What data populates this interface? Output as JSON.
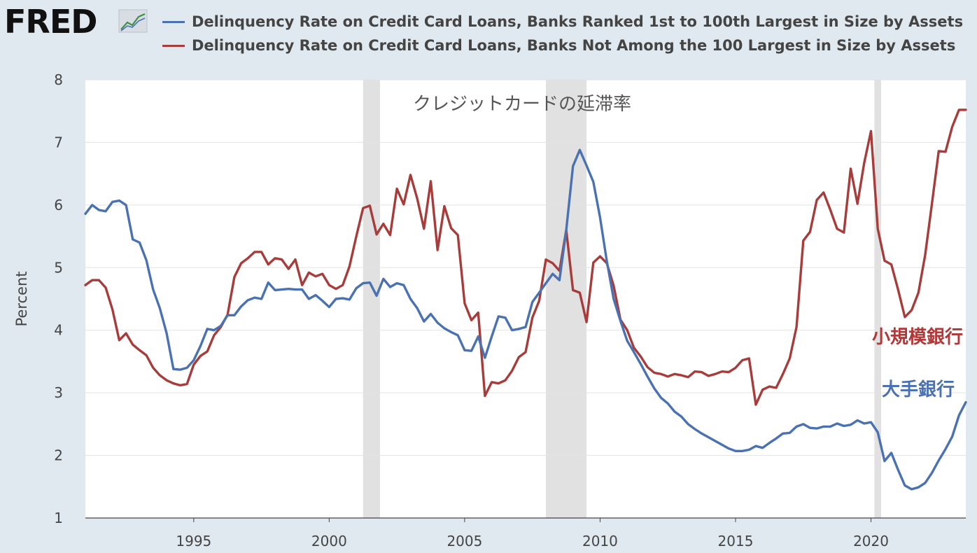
{
  "header": {
    "logo_text": "FRED",
    "logo_icon": "line-chart-icon"
  },
  "legend": [
    {
      "label": "Delinquency Rate on Credit Card Loans, Banks Ranked 1st to 100th Largest in Size by Assets",
      "color": "#4a72b2"
    },
    {
      "label": "Delinquency Rate on Credit Card Loans, Banks Not Among the 100 Largest in Size by Assets",
      "color": "#a83c3a"
    }
  ],
  "annotations": {
    "title": "クレジットカードの延滞率",
    "small_banks": "小規模銀行",
    "large_banks": "大手銀行"
  },
  "chart_data": {
    "type": "line",
    "ylabel": "Percent",
    "xlim": [
      1991.0,
      2023.5
    ],
    "ylim": [
      1,
      8
    ],
    "y_ticks": [
      1,
      2,
      3,
      4,
      5,
      6,
      7,
      8
    ],
    "x_ticks": [
      1995,
      2000,
      2005,
      2010,
      2015,
      2020
    ],
    "x_tick_labels": [
      "1995",
      "2000",
      "2005",
      "2010",
      "2015",
      "2020"
    ],
    "grid": "horizontal",
    "recessions": [
      [
        2001.25,
        2001.875
      ],
      [
        2008.0,
        2009.5
      ],
      [
        2020.125,
        2020.375
      ]
    ],
    "series": [
      {
        "name": "Delinquency Rate on Credit Card Loans, Banks Ranked 1st to 100th Largest in Size by Assets",
        "color": "#4a72b2",
        "points": [
          [
            1991.0,
            5.86
          ],
          [
            1991.25,
            6.0
          ],
          [
            1991.5,
            5.92
          ],
          [
            1991.75,
            5.9
          ],
          [
            1992.0,
            6.05
          ],
          [
            1992.25,
            6.07
          ],
          [
            1992.5,
            6.0
          ],
          [
            1992.75,
            5.45
          ],
          [
            1993.0,
            5.4
          ],
          [
            1993.25,
            5.12
          ],
          [
            1993.5,
            4.65
          ],
          [
            1993.75,
            4.35
          ],
          [
            1994.0,
            3.95
          ],
          [
            1994.25,
            3.38
          ],
          [
            1994.5,
            3.37
          ],
          [
            1994.75,
            3.4
          ],
          [
            1995.0,
            3.52
          ],
          [
            1995.25,
            3.75
          ],
          [
            1995.5,
            4.02
          ],
          [
            1995.75,
            4.0
          ],
          [
            1996.0,
            4.07
          ],
          [
            1996.25,
            4.24
          ],
          [
            1996.5,
            4.24
          ],
          [
            1996.75,
            4.38
          ],
          [
            1997.0,
            4.48
          ],
          [
            1997.25,
            4.52
          ],
          [
            1997.5,
            4.5
          ],
          [
            1997.75,
            4.76
          ],
          [
            1998.0,
            4.64
          ],
          [
            1998.25,
            4.65
          ],
          [
            1998.5,
            4.66
          ],
          [
            1998.75,
            4.65
          ],
          [
            1999.0,
            4.65
          ],
          [
            1999.25,
            4.5
          ],
          [
            1999.5,
            4.56
          ],
          [
            1999.75,
            4.47
          ],
          [
            2000.0,
            4.37
          ],
          [
            2000.25,
            4.5
          ],
          [
            2000.5,
            4.51
          ],
          [
            2000.75,
            4.49
          ],
          [
            2001.0,
            4.67
          ],
          [
            2001.25,
            4.75
          ],
          [
            2001.5,
            4.76
          ],
          [
            2001.75,
            4.55
          ],
          [
            2002.0,
            4.82
          ],
          [
            2002.25,
            4.69
          ],
          [
            2002.5,
            4.75
          ],
          [
            2002.75,
            4.72
          ],
          [
            2003.0,
            4.5
          ],
          [
            2003.25,
            4.35
          ],
          [
            2003.5,
            4.14
          ],
          [
            2003.75,
            4.26
          ],
          [
            2004.0,
            4.12
          ],
          [
            2004.25,
            4.03
          ],
          [
            2004.5,
            3.97
          ],
          [
            2004.75,
            3.92
          ],
          [
            2005.0,
            3.68
          ],
          [
            2005.25,
            3.67
          ],
          [
            2005.5,
            3.9
          ],
          [
            2005.75,
            3.56
          ],
          [
            2006.0,
            3.9
          ],
          [
            2006.25,
            4.22
          ],
          [
            2006.5,
            4.2
          ],
          [
            2006.75,
            4.0
          ],
          [
            2007.0,
            4.02
          ],
          [
            2007.25,
            4.05
          ],
          [
            2007.5,
            4.45
          ],
          [
            2007.75,
            4.6
          ],
          [
            2008.0,
            4.75
          ],
          [
            2008.25,
            4.9
          ],
          [
            2008.5,
            4.8
          ],
          [
            2008.75,
            5.6
          ],
          [
            2009.0,
            6.62
          ],
          [
            2009.25,
            6.88
          ],
          [
            2009.5,
            6.63
          ],
          [
            2009.75,
            6.37
          ],
          [
            2010.0,
            5.8
          ],
          [
            2010.25,
            5.1
          ],
          [
            2010.5,
            4.5
          ],
          [
            2010.75,
            4.15
          ],
          [
            2011.0,
            3.83
          ],
          [
            2011.25,
            3.65
          ],
          [
            2011.5,
            3.46
          ],
          [
            2011.75,
            3.26
          ],
          [
            2012.0,
            3.07
          ],
          [
            2012.25,
            2.92
          ],
          [
            2012.5,
            2.83
          ],
          [
            2012.75,
            2.7
          ],
          [
            2013.0,
            2.62
          ],
          [
            2013.25,
            2.5
          ],
          [
            2013.5,
            2.42
          ],
          [
            2013.75,
            2.35
          ],
          [
            2014.0,
            2.29
          ],
          [
            2014.25,
            2.23
          ],
          [
            2014.5,
            2.17
          ],
          [
            2014.75,
            2.11
          ],
          [
            2015.0,
            2.07
          ],
          [
            2015.25,
            2.07
          ],
          [
            2015.5,
            2.09
          ],
          [
            2015.75,
            2.15
          ],
          [
            2016.0,
            2.12
          ],
          [
            2016.25,
            2.2
          ],
          [
            2016.5,
            2.27
          ],
          [
            2016.75,
            2.35
          ],
          [
            2017.0,
            2.36
          ],
          [
            2017.25,
            2.46
          ],
          [
            2017.5,
            2.5
          ],
          [
            2017.75,
            2.44
          ],
          [
            2018.0,
            2.43
          ],
          [
            2018.25,
            2.46
          ],
          [
            2018.5,
            2.46
          ],
          [
            2018.75,
            2.51
          ],
          [
            2019.0,
            2.47
          ],
          [
            2019.25,
            2.49
          ],
          [
            2019.5,
            2.56
          ],
          [
            2019.75,
            2.51
          ],
          [
            2020.0,
            2.53
          ],
          [
            2020.25,
            2.37
          ],
          [
            2020.5,
            1.91
          ],
          [
            2020.75,
            2.04
          ],
          [
            2021.0,
            1.77
          ],
          [
            2021.25,
            1.52
          ],
          [
            2021.5,
            1.46
          ],
          [
            2021.75,
            1.49
          ],
          [
            2022.0,
            1.56
          ],
          [
            2022.25,
            1.72
          ],
          [
            2022.5,
            1.92
          ],
          [
            2022.75,
            2.1
          ],
          [
            2023.0,
            2.3
          ],
          [
            2023.25,
            2.64
          ],
          [
            2023.5,
            2.85
          ]
        ]
      },
      {
        "name": "Delinquency Rate on Credit Card Loans, Banks Not Among the 100 Largest in Size by Assets",
        "color": "#a83c3a",
        "points": [
          [
            1991.0,
            4.72
          ],
          [
            1991.25,
            4.8
          ],
          [
            1991.5,
            4.8
          ],
          [
            1991.75,
            4.68
          ],
          [
            1992.0,
            4.33
          ],
          [
            1992.25,
            3.84
          ],
          [
            1992.5,
            3.95
          ],
          [
            1992.75,
            3.77
          ],
          [
            1993.0,
            3.68
          ],
          [
            1993.25,
            3.6
          ],
          [
            1993.5,
            3.4
          ],
          [
            1993.75,
            3.28
          ],
          [
            1994.0,
            3.2
          ],
          [
            1994.25,
            3.15
          ],
          [
            1994.5,
            3.12
          ],
          [
            1994.75,
            3.14
          ],
          [
            1995.0,
            3.45
          ],
          [
            1995.25,
            3.59
          ],
          [
            1995.5,
            3.66
          ],
          [
            1995.75,
            3.92
          ],
          [
            1996.0,
            4.05
          ],
          [
            1996.25,
            4.25
          ],
          [
            1996.5,
            4.85
          ],
          [
            1996.75,
            5.07
          ],
          [
            1997.0,
            5.15
          ],
          [
            1997.25,
            5.25
          ],
          [
            1997.5,
            5.25
          ],
          [
            1997.75,
            5.05
          ],
          [
            1998.0,
            5.15
          ],
          [
            1998.25,
            5.13
          ],
          [
            1998.5,
            4.98
          ],
          [
            1998.75,
            5.13
          ],
          [
            1999.0,
            4.72
          ],
          [
            1999.25,
            4.92
          ],
          [
            1999.5,
            4.86
          ],
          [
            1999.75,
            4.9
          ],
          [
            2000.0,
            4.72
          ],
          [
            2000.25,
            4.66
          ],
          [
            2000.5,
            4.72
          ],
          [
            2000.75,
            5.02
          ],
          [
            2001.0,
            5.5
          ],
          [
            2001.25,
            5.95
          ],
          [
            2001.5,
            5.99
          ],
          [
            2001.75,
            5.53
          ],
          [
            2002.0,
            5.7
          ],
          [
            2002.25,
            5.52
          ],
          [
            2002.5,
            6.26
          ],
          [
            2002.75,
            6.01
          ],
          [
            2003.0,
            6.48
          ],
          [
            2003.25,
            6.1
          ],
          [
            2003.5,
            5.62
          ],
          [
            2003.75,
            6.38
          ],
          [
            2004.0,
            5.28
          ],
          [
            2004.25,
            5.98
          ],
          [
            2004.5,
            5.63
          ],
          [
            2004.75,
            5.52
          ],
          [
            2005.0,
            4.43
          ],
          [
            2005.25,
            4.16
          ],
          [
            2005.5,
            4.28
          ],
          [
            2005.75,
            2.95
          ],
          [
            2006.0,
            3.17
          ],
          [
            2006.25,
            3.15
          ],
          [
            2006.5,
            3.2
          ],
          [
            2006.75,
            3.35
          ],
          [
            2007.0,
            3.57
          ],
          [
            2007.25,
            3.65
          ],
          [
            2007.5,
            4.2
          ],
          [
            2007.75,
            4.47
          ],
          [
            2008.0,
            5.13
          ],
          [
            2008.25,
            5.07
          ],
          [
            2008.5,
            4.95
          ],
          [
            2008.75,
            5.6
          ],
          [
            2009.0,
            4.64
          ],
          [
            2009.25,
            4.6
          ],
          [
            2009.5,
            4.13
          ],
          [
            2009.75,
            5.08
          ],
          [
            2010.0,
            5.18
          ],
          [
            2010.25,
            5.07
          ],
          [
            2010.5,
            4.71
          ],
          [
            2010.75,
            4.17
          ],
          [
            2011.0,
            4.0
          ],
          [
            2011.25,
            3.72
          ],
          [
            2011.5,
            3.58
          ],
          [
            2011.75,
            3.41
          ],
          [
            2012.0,
            3.32
          ],
          [
            2012.25,
            3.3
          ],
          [
            2012.5,
            3.26
          ],
          [
            2012.75,
            3.3
          ],
          [
            2013.0,
            3.28
          ],
          [
            2013.25,
            3.25
          ],
          [
            2013.5,
            3.34
          ],
          [
            2013.75,
            3.33
          ],
          [
            2014.0,
            3.27
          ],
          [
            2014.25,
            3.3
          ],
          [
            2014.5,
            3.34
          ],
          [
            2014.75,
            3.33
          ],
          [
            2015.0,
            3.4
          ],
          [
            2015.25,
            3.52
          ],
          [
            2015.5,
            3.55
          ],
          [
            2015.75,
            2.81
          ],
          [
            2016.0,
            3.05
          ],
          [
            2016.25,
            3.1
          ],
          [
            2016.5,
            3.08
          ],
          [
            2016.75,
            3.3
          ],
          [
            2017.0,
            3.55
          ],
          [
            2017.25,
            4.05
          ],
          [
            2017.5,
            5.43
          ],
          [
            2017.75,
            5.57
          ],
          [
            2018.0,
            6.08
          ],
          [
            2018.25,
            6.2
          ],
          [
            2018.5,
            5.92
          ],
          [
            2018.75,
            5.62
          ],
          [
            2019.0,
            5.56
          ],
          [
            2019.25,
            6.58
          ],
          [
            2019.5,
            6.02
          ],
          [
            2019.75,
            6.67
          ],
          [
            2020.0,
            7.18
          ],
          [
            2020.25,
            5.62
          ],
          [
            2020.5,
            5.11
          ],
          [
            2020.75,
            5.05
          ],
          [
            2021.0,
            4.65
          ],
          [
            2021.25,
            4.21
          ],
          [
            2021.5,
            4.32
          ],
          [
            2021.75,
            4.6
          ],
          [
            2022.0,
            5.2
          ],
          [
            2022.25,
            6.02
          ],
          [
            2022.5,
            6.86
          ],
          [
            2022.75,
            6.85
          ],
          [
            2023.0,
            7.25
          ],
          [
            2023.25,
            7.52
          ],
          [
            2023.5,
            7.52
          ]
        ]
      }
    ]
  }
}
